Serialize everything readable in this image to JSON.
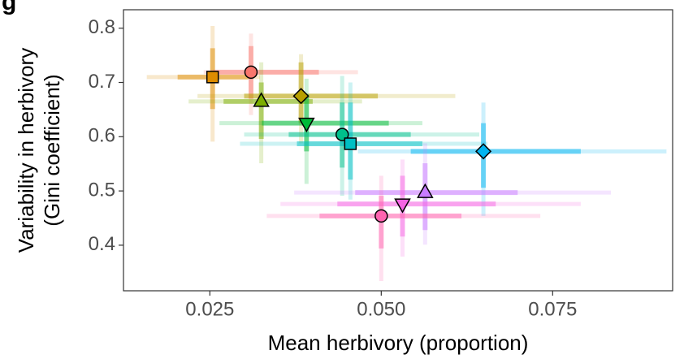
{
  "chart_data": {
    "type": "scatter",
    "panel_label": "g",
    "x_label": "Mean herbivory (proportion)",
    "y_label": [
      "Variability in herbivory",
      "(Gini coefficient)"
    ],
    "xlim": [
      0.0124,
      0.0925
    ],
    "xticks": [
      0.025,
      {
        "value": 0.05,
        "label": "0.050"
      },
      0.075
    ],
    "ylim": [
      0.316,
      0.834
    ],
    "yticks": [
      0.4,
      0.5,
      0.6,
      0.7,
      0.8
    ],
    "points": [
      {
        "shape": "square",
        "color": "#DE8C00",
        "x": 0.0254,
        "y": 0.71,
        "x_inner": [
          0.0203,
          0.0306
        ],
        "x_outer": [
          0.0158,
          0.0323
        ],
        "y_inner": [
          0.651,
          0.763
        ],
        "y_outer": [
          0.591,
          0.804
        ]
      },
      {
        "shape": "circle",
        "color": "#F8766D",
        "x": 0.031,
        "y": 0.719,
        "x_inner": [
          0.0255,
          0.0409
        ],
        "x_outer": [
          0.0241,
          0.0466
        ],
        "y_inner": [
          0.67,
          0.767
        ],
        "y_outer": [
          0.64,
          0.79
        ]
      },
      {
        "shape": "diamond",
        "color": "#B79F00",
        "x": 0.0383,
        "y": 0.675,
        "x_inner": [
          0.03,
          0.0495
        ],
        "x_outer": [
          0.0232,
          0.0608
        ],
        "y_inner": [
          0.625,
          0.737
        ],
        "y_outer": [
          0.588,
          0.752
        ]
      },
      {
        "shape": "triangle",
        "color": "#7CAE00",
        "x": 0.0325,
        "y": 0.665,
        "x_inner": [
          0.027,
          0.04
        ],
        "x_outer": [
          0.0219,
          0.0472
        ],
        "y_inner": [
          0.596,
          0.7
        ],
        "y_outer": [
          0.551,
          0.737
        ]
      },
      {
        "shape": "triangle-down",
        "color": "#00BA38",
        "x": 0.0391,
        "y": 0.625,
        "x_inner": [
          0.0326,
          0.0511
        ],
        "x_outer": [
          0.0264,
          0.056
        ],
        "y_inner": [
          0.573,
          0.678
        ],
        "y_outer": [
          0.513,
          0.707
        ]
      },
      {
        "shape": "circle",
        "color": "#00C08B",
        "x": 0.0443,
        "y": 0.604,
        "x_inner": [
          0.0365,
          0.0543
        ],
        "x_outer": [
          0.03,
          0.0643
        ],
        "y_inner": [
          0.543,
          0.663
        ],
        "y_outer": [
          0.491,
          0.712
        ]
      },
      {
        "shape": "square",
        "color": "#00BFC4",
        "x": 0.0455,
        "y": 0.587,
        "x_inner": [
          0.0377,
          0.056
        ],
        "x_outer": [
          0.0294,
          0.0655
        ],
        "y_inner": [
          0.521,
          0.663
        ],
        "y_outer": [
          0.484,
          0.7
        ]
      },
      {
        "shape": "diamond",
        "color": "#00B4F0",
        "x": 0.0649,
        "y": 0.573,
        "x_inner": [
          0.0543,
          0.0791
        ],
        "x_outer": [
          0.0466,
          0.0916
        ],
        "y_inner": [
          0.506,
          0.625
        ],
        "y_outer": [
          0.454,
          0.663
        ]
      },
      {
        "shape": "triangle",
        "color": "#C77CFF",
        "x": 0.0564,
        "y": 0.497,
        "x_inner": [
          0.0462,
          0.0699
        ],
        "x_outer": [
          0.0373,
          0.0835
        ],
        "y_inner": [
          0.428,
          0.551
        ],
        "y_outer": [
          0.401,
          0.588
        ]
      },
      {
        "shape": "triangle-down",
        "color": "#F564E3",
        "x": 0.0531,
        "y": 0.476,
        "x_inner": [
          0.0436,
          0.0667
        ],
        "x_outer": [
          0.0353,
          0.0791
        ],
        "y_inner": [
          0.416,
          0.528
        ],
        "y_outer": [
          0.379,
          0.558
        ]
      },
      {
        "shape": "circle",
        "color": "#FF64B0",
        "x": 0.05,
        "y": 0.454,
        "x_inner": [
          0.041,
          0.0617
        ],
        "x_outer": [
          0.0333,
          0.0732
        ],
        "y_inner": [
          0.394,
          0.491
        ],
        "y_outer": [
          0.334,
          0.528
        ]
      }
    ]
  }
}
